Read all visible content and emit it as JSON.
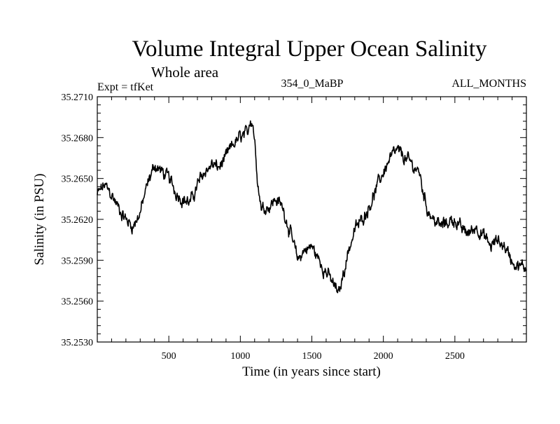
{
  "chart_data": {
    "type": "line",
    "title": "Volume Integral Upper Ocean Salinity",
    "subtitle": "Whole area",
    "experiment_label": "Expt = tfKet",
    "run_label": "354_0_MaBP",
    "months_label": "ALL_MONTHS",
    "xlabel": "Time (in years since start)",
    "ylabel": "Salinity (in PSU)",
    "xlim": [
      0,
      3000
    ],
    "ylim": [
      35.253,
      35.271
    ],
    "x_ticks": [
      500,
      1000,
      1500,
      2000,
      2500
    ],
    "x_tick_labels": [
      "500",
      "1000",
      "1500",
      "2000",
      "2500"
    ],
    "y_ticks": [
      35.253,
      35.256,
      35.259,
      35.262,
      35.265,
      35.268,
      35.271
    ],
    "y_tick_labels": [
      "35.2530",
      "35.2560",
      "35.2590",
      "35.2620",
      "35.2650",
      "35.2680",
      "35.2710"
    ],
    "grid": false,
    "line_color": "#000000",
    "series": [
      {
        "x": [
          0,
          50,
          100,
          150,
          200,
          250,
          300,
          350,
          400,
          450,
          500,
          550,
          600,
          650,
          700,
          750,
          800,
          850,
          900,
          950,
          1000,
          1050,
          1070,
          1090,
          1110,
          1130,
          1150,
          1200,
          1250,
          1300,
          1350,
          1400,
          1450,
          1500,
          1550,
          1600,
          1650,
          1690,
          1720,
          1750,
          1800,
          1850,
          1900,
          1950,
          2000,
          2050,
          2100,
          2150,
          2200,
          2250,
          2300,
          2350,
          2400,
          2450,
          2500,
          2550,
          2600,
          2650,
          2700,
          2750,
          2800,
          2850,
          2900,
          2950,
          3000
        ],
        "values": [
          35.2638,
          35.2645,
          35.2638,
          35.2628,
          35.262,
          35.2615,
          35.2625,
          35.2645,
          35.266,
          35.2655,
          35.265,
          35.264,
          35.2635,
          35.2632,
          35.2645,
          35.2655,
          35.266,
          35.2658,
          35.2665,
          35.2675,
          35.268,
          35.2682,
          35.2695,
          35.269,
          35.2665,
          35.264,
          35.2628,
          35.263,
          35.2635,
          35.2628,
          35.261,
          35.259,
          35.2598,
          35.26,
          35.259,
          35.2582,
          35.2572,
          35.2565,
          35.258,
          35.2595,
          35.2612,
          35.262,
          35.263,
          35.2642,
          35.2655,
          35.2665,
          35.267,
          35.2665,
          35.266,
          35.2655,
          35.263,
          35.262,
          35.2615,
          35.2618,
          35.262,
          35.2612,
          35.261,
          35.2615,
          35.2608,
          35.26,
          35.2605,
          35.26,
          35.259,
          35.2585,
          35.2585
        ]
      }
    ]
  }
}
